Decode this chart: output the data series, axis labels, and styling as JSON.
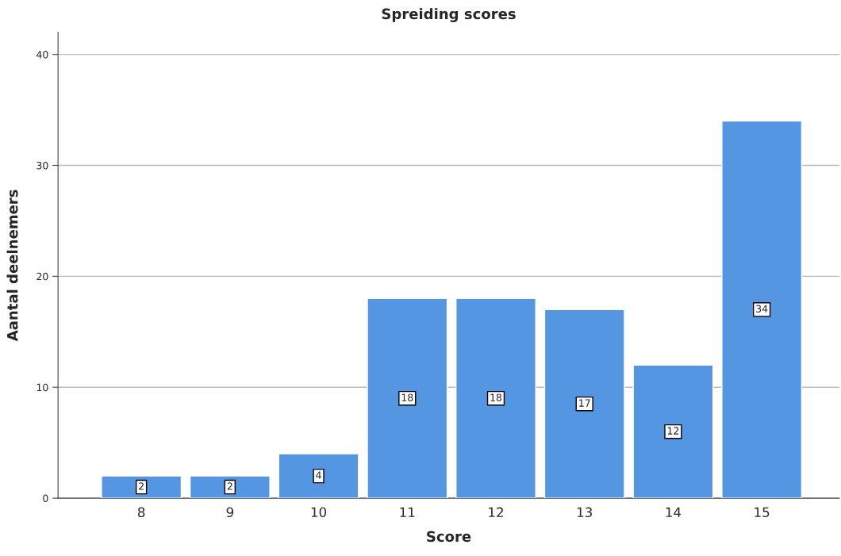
{
  "chart_data": {
    "type": "bar",
    "title": "Spreiding scores",
    "xlabel": "Score",
    "ylabel": "Aantal deelnemers",
    "categories": [
      "8",
      "9",
      "10",
      "11",
      "12",
      "13",
      "14",
      "15"
    ],
    "values": [
      2,
      2,
      4,
      18,
      18,
      17,
      12,
      34
    ],
    "color": "#5596e3",
    "ylim": [
      0,
      42
    ],
    "yticks": [
      0,
      10,
      20,
      30,
      40
    ],
    "grid": "y",
    "data_labels": true
  }
}
